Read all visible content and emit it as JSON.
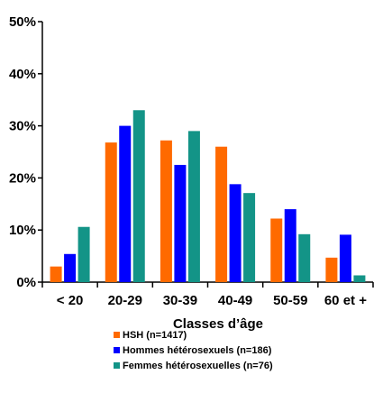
{
  "chart_data": {
    "type": "bar",
    "categories": [
      "< 20",
      "20-29",
      "30-39",
      "40-49",
      "50-59",
      "60 et +"
    ],
    "series": [
      {
        "name": "HSH (n=1417)",
        "color": "#ff6a00",
        "values": [
          3,
          26.8,
          27.2,
          26,
          12.2,
          4.7
        ]
      },
      {
        "name": "Hommes hétérosexuels (n=186)",
        "color": "#0000ff",
        "values": [
          5.4,
          30,
          22.5,
          18.8,
          14,
          9.1
        ]
      },
      {
        "name": "Femmes hétérosexuelles (n=76)",
        "color": "#139487",
        "values": [
          10.6,
          33,
          29,
          17.1,
          9.2,
          1.3
        ]
      }
    ],
    "y_ticks": [
      "0%",
      "10%",
      "20%",
      "30%",
      "40%",
      "50%"
    ],
    "ylim": [
      0,
      50
    ],
    "xlabel": "Classes d’âge",
    "ylabel": "",
    "title": "",
    "legend_position": "bottom-center",
    "grid": false
  }
}
